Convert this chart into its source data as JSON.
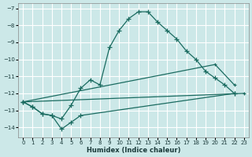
{
  "xlabel": "Humidex (Indice chaleur)",
  "background_color": "#cce8e8",
  "grid_color": "#ffffff",
  "line_color": "#1a6b60",
  "xlim": [
    -0.5,
    23.5
  ],
  "ylim": [
    -14.6,
    -6.7
  ],
  "yticks": [
    -7,
    -8,
    -9,
    -10,
    -11,
    -12,
    -13,
    -14
  ],
  "xticks": [
    0,
    1,
    2,
    3,
    4,
    5,
    6,
    7,
    8,
    9,
    10,
    11,
    12,
    13,
    14,
    15,
    16,
    17,
    18,
    19,
    20,
    21,
    22,
    23
  ],
  "series": [
    {
      "x": [
        0,
        1,
        2,
        3,
        4,
        5,
        6,
        7,
        8,
        9,
        10,
        11,
        12,
        13,
        14,
        15,
        16,
        17,
        18,
        19,
        20,
        21,
        22
      ],
      "y": [
        -12.5,
        -12.8,
        -13.2,
        -13.3,
        -13.5,
        -12.7,
        -11.7,
        -11.2,
        -11.5,
        -9.3,
        -8.3,
        -7.6,
        -7.2,
        -7.2,
        -7.8,
        -8.3,
        -8.8,
        -9.5,
        -10.0,
        -10.7,
        -11.1,
        -11.5,
        -12.0
      ]
    },
    {
      "x": [
        0,
        1,
        2,
        3,
        4,
        5,
        6,
        22
      ],
      "y": [
        -12.5,
        -12.8,
        -13.2,
        -13.3,
        -14.1,
        -13.7,
        -13.3,
        -12.0
      ]
    },
    {
      "x": [
        0,
        20,
        22
      ],
      "y": [
        -12.5,
        -10.3,
        -11.5
      ]
    },
    {
      "x": [
        0,
        23
      ],
      "y": [
        -12.5,
        -12.0
      ]
    }
  ]
}
